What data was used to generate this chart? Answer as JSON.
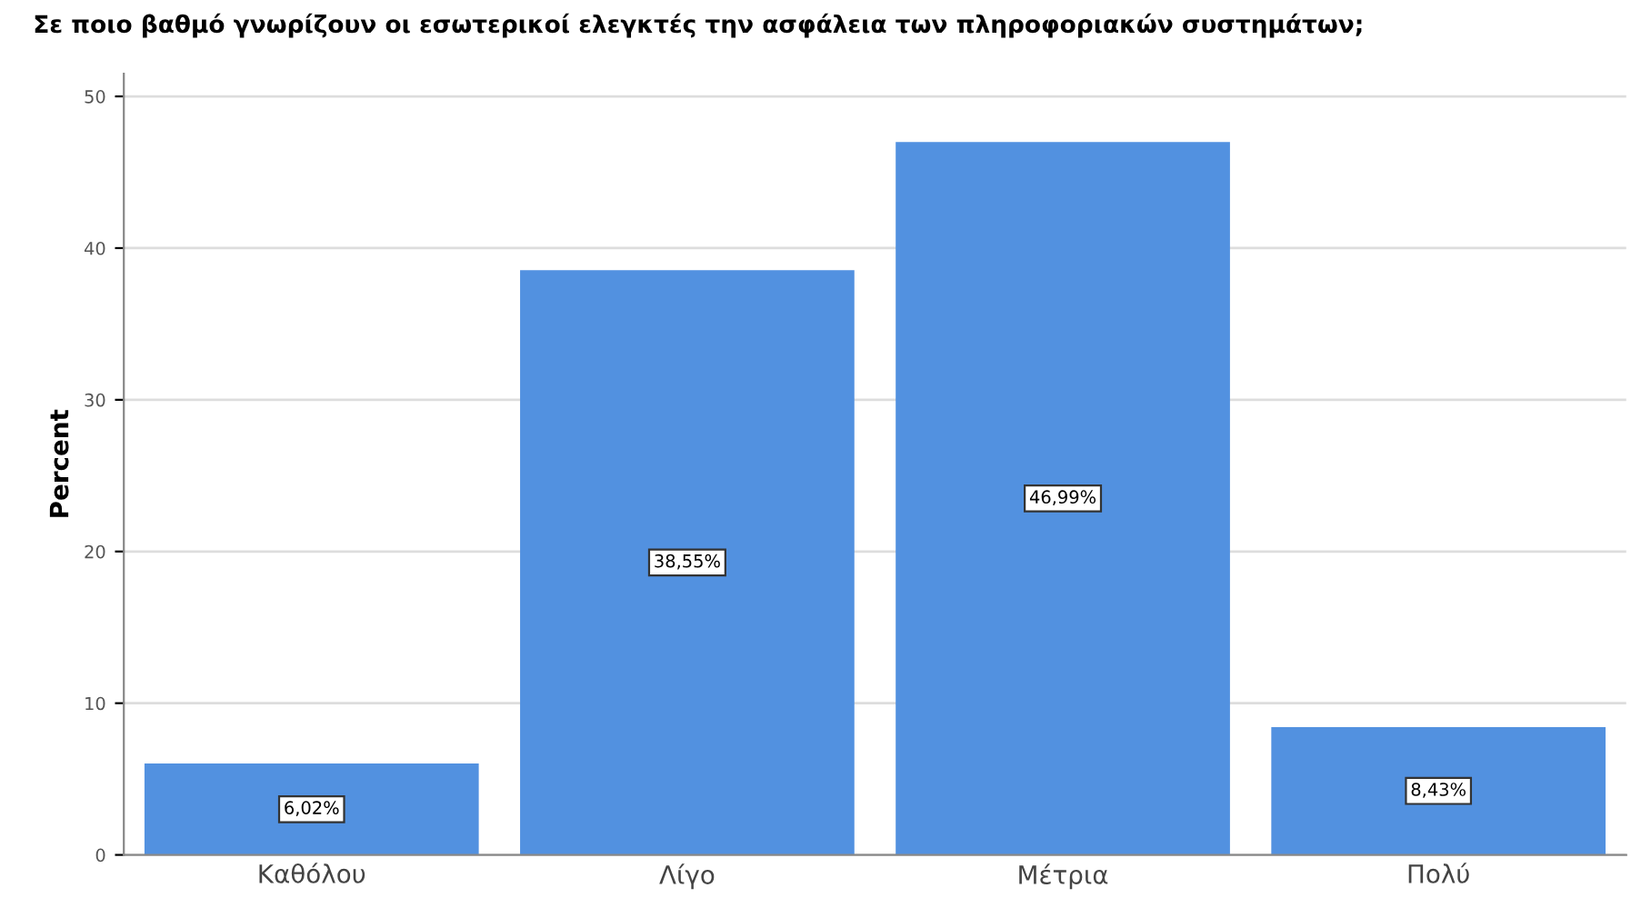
{
  "chart_data": {
    "type": "bar",
    "title": "Σε ποιο βαθμό γνωρίζουν οι εσωτερικοί ελεγκτές την ασφάλεια των πληροφοριακών συστημάτων;",
    "ylabel": "Percent",
    "categories": [
      "Καθόλου",
      "Λίγο",
      "Μέτρια",
      "Πολύ"
    ],
    "values": [
      6.02,
      38.55,
      46.99,
      8.43
    ],
    "value_labels": [
      "6,02%",
      "38,55%",
      "46,99%",
      "8,43%"
    ],
    "color": "#5291e0",
    "ylim": [
      0,
      51.5
    ],
    "yticks": [
      0,
      10,
      20,
      30,
      40,
      50
    ],
    "grid": "y"
  }
}
